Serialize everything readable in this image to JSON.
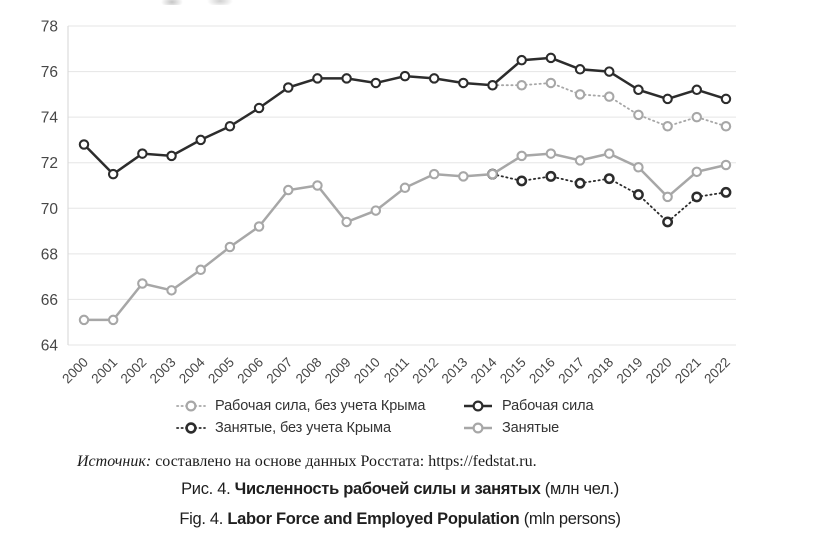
{
  "chart_data": {
    "type": "line",
    "title": "",
    "xlabel": "",
    "ylabel": "",
    "x": [
      2000,
      2001,
      2002,
      2003,
      2004,
      2005,
      2006,
      2007,
      2008,
      2009,
      2010,
      2011,
      2012,
      2013,
      2014,
      2015,
      2016,
      2017,
      2018,
      2019,
      2020,
      2021,
      2022
    ],
    "ylim": [
      64,
      78
    ],
    "yticks": [
      78,
      76,
      74,
      72,
      70,
      68,
      66,
      64
    ],
    "grid": true,
    "legend_position": "bottom",
    "series": [
      {
        "name": "Рабочая сила, без учета Крыма",
        "style": "dotted",
        "color": "#a7a7a7",
        "start_x": 2014,
        "values": [
          75.4,
          75.4,
          75.5,
          75.0,
          74.9,
          74.1,
          73.6,
          74.0,
          73.6
        ]
      },
      {
        "name": "Занятые, без учета Крыма",
        "style": "dotted",
        "color": "#2c2c2c",
        "start_x": 2014,
        "values": [
          71.5,
          71.2,
          71.4,
          71.1,
          71.3,
          70.6,
          69.4,
          70.5,
          70.7
        ]
      },
      {
        "name": "Занятые",
        "style": "solid",
        "color": "#a7a7a7",
        "start_x": 2000,
        "values": [
          65.1,
          65.1,
          66.7,
          66.4,
          67.3,
          68.3,
          69.2,
          70.8,
          71.0,
          69.4,
          69.9,
          70.9,
          71.5,
          71.4,
          71.5,
          72.3,
          72.4,
          72.1,
          72.4,
          71.8,
          70.5,
          71.6,
          71.9
        ]
      },
      {
        "name": "Рабочая сила",
        "style": "solid",
        "color": "#2c2c2c",
        "start_x": 2000,
        "values": [
          72.8,
          71.5,
          72.4,
          72.3,
          73.0,
          73.6,
          74.4,
          75.3,
          75.7,
          75.7,
          75.5,
          75.8,
          75.7,
          75.5,
          75.4,
          76.5,
          76.6,
          76.1,
          76.0,
          75.2,
          74.8,
          75.2,
          74.8
        ]
      }
    ],
    "legend_order": [
      {
        "series": 0
      },
      {
        "series": 3
      },
      {
        "series": 1
      },
      {
        "series": 2
      }
    ]
  },
  "colors": {
    "series_dark": "#2c2c2c",
    "series_gray": "#a7a7a7",
    "grid_line": "#e5e5e5",
    "axis_line": "#d6d6d6",
    "tick_text": "#474747"
  },
  "figure": {
    "source_label": "Источник:",
    "source_text": " составлено на основе данных Росстата: https://fedstat.ru.",
    "caption_ru": {
      "prefix": "Рис. 4. ",
      "bold": "Численность рабочей силы и занятых",
      "suffix": " (млн чел.)"
    },
    "caption_en": {
      "prefix": "Fig. 4. ",
      "bold": "Labor Force and Employed Population",
      "suffix": " (mln persons)"
    }
  }
}
